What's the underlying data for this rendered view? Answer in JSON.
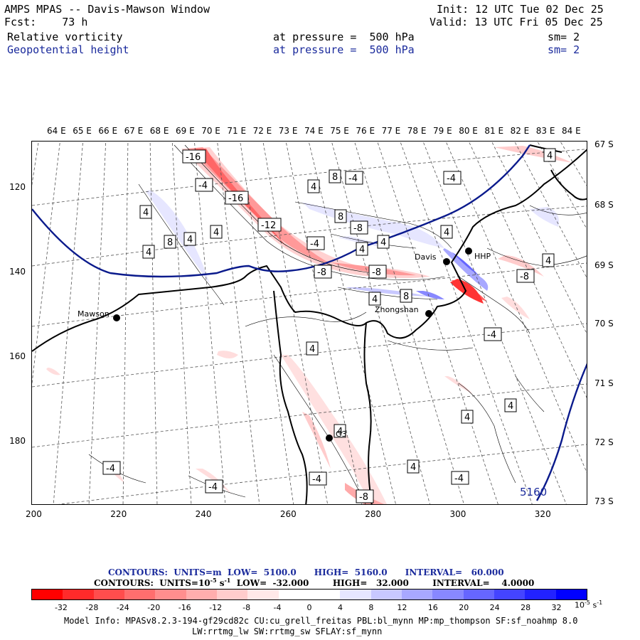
{
  "header": {
    "title": "AMPS MPAS -- Davis-Mawson Window",
    "fcst": "Fcst:    73 h",
    "init": "Init: 12 UTC Tue 02 Dec 25",
    "valid": "Valid: 13 UTC Fri 05 Dec 25",
    "field1": {
      "name": "Relative vorticity",
      "level": "at pressure =  500 hPa",
      "sm": "sm= 2"
    },
    "field2": {
      "name": "Geopotential height",
      "level": "at pressure =  500 hPa",
      "sm": "sm= 2"
    }
  },
  "axes": {
    "lon_labels": [
      "64 E",
      "65 E",
      "66 E",
      "67 E",
      "68 E",
      "69 E",
      "70 E",
      "71 E",
      "72 E",
      "73 E",
      "74 E",
      "75 E",
      "76 E",
      "77 E",
      "78 E",
      "79 E",
      "80 E",
      "81 E",
      "82 E",
      "83 E",
      "84 E"
    ],
    "lat_labels": [
      "67 S",
      "68 S",
      "69 S",
      "70 S",
      "71 S",
      "72 S",
      "73 S"
    ],
    "y_ticks": [
      "120",
      "140",
      "160",
      "180"
    ],
    "x_ticks": [
      "200",
      "220",
      "240",
      "260",
      "280",
      "300",
      "320"
    ]
  },
  "stations": [
    {
      "name": "Mawson"
    },
    {
      "name": "Davis"
    },
    {
      "name": "HHP"
    },
    {
      "name": "Zhongshan"
    },
    {
      "name": "G3"
    }
  ],
  "contour_labels": [
    "-16",
    "-4",
    "-16",
    "-12",
    "-4",
    "-8",
    "-8",
    "-4",
    "-4",
    "4",
    "8",
    "4",
    "8",
    "4",
    "4",
    "4",
    "4",
    "4",
    "8",
    "4",
    "4",
    "8",
    "4",
    "-8",
    "4",
    "-4",
    "4",
    "4",
    "4",
    "4",
    "-4",
    "-4",
    "-4",
    "-4",
    "-8",
    "4",
    "-8",
    "5160"
  ],
  "contour_info": {
    "line1": "CONTOURS:  UNITS=m  LOW=  5100.0      HIGH=  5160.0      INTERVAL=   60.000",
    "line2_a": "CONTOURS:  UNITS=10",
    "line2_exp": "-5",
    "line2_b": " s",
    "line2_exp2": "-1",
    "line2_c": "  LOW=  -32.000        HIGH=   32.000        INTERVAL=    4.0000"
  },
  "colorbar": {
    "colors": [
      "#ff0000",
      "#ff2a2a",
      "#ff4d4d",
      "#ff6e6e",
      "#ff8e8e",
      "#ffadad",
      "#ffcccc",
      "#ffe8e8",
      "#ffffff",
      "#ffffff",
      "#e6e6ff",
      "#c8c8ff",
      "#a8a8ff",
      "#8888ff",
      "#6666ff",
      "#4444ff",
      "#2222ff",
      "#0000ff"
    ],
    "labels": [
      "-32",
      "-28",
      "-24",
      "-20",
      "-16",
      "-12",
      "-8",
      "-4",
      "0",
      "4",
      "8",
      "12",
      "16",
      "20",
      "24",
      "28",
      "32"
    ],
    "units": "10",
    "units_exp": "-5",
    "units_s": " s",
    "units_exp2": "-1"
  },
  "model_info": {
    "line1": "Model Info: MPASv8.2.3-194-gf29cd82c CU:cu_grell_freitas PBL:bl_mynn MP:mp_thompson SF:sf_noahmp 8.0",
    "line2": "LW:rrtmg_lw SW:rrtmg_sw SFLAY:sf_mynn"
  }
}
